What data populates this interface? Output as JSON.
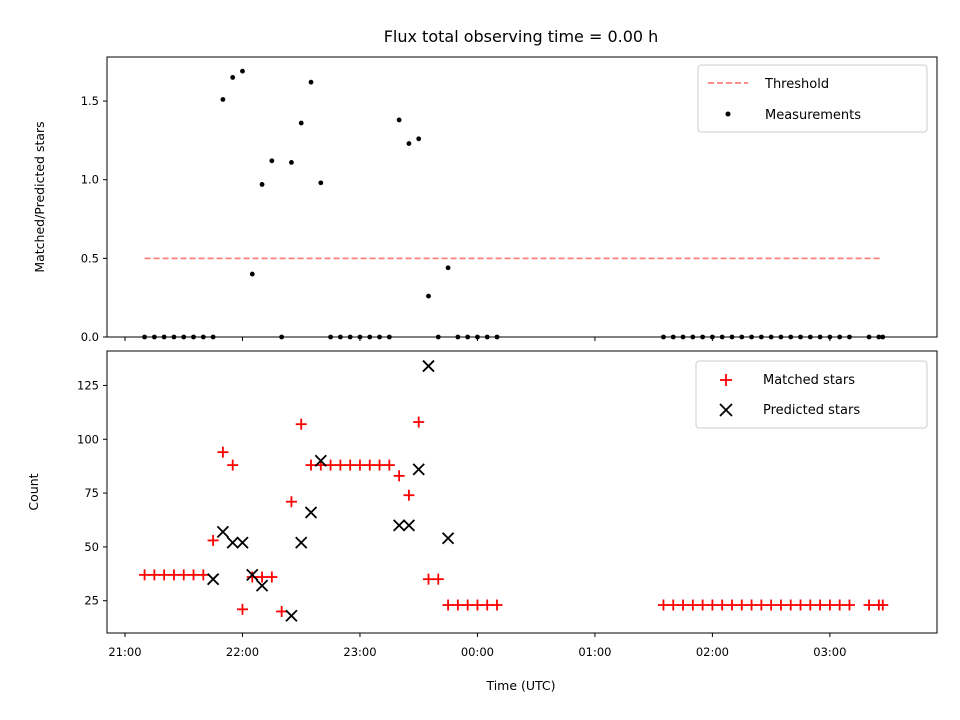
{
  "chart_data": [
    {
      "type": "scatter",
      "title": "Flux total observing time = 0.00 h",
      "ylabel": "Matched/Predicted stars",
      "xlabel": "",
      "xlim": [
        "21:00",
        "03:45"
      ],
      "ylim": [
        0,
        1.78
      ],
      "yticks": [
        "0.0",
        "0.5",
        "1.0",
        "1.5"
      ],
      "legend": "top-right",
      "threshold": {
        "name": "Threshold",
        "value": 0.5,
        "x_range": [
          "21:10",
          "03:26"
        ],
        "color": "#ff7f7f",
        "style": "dashed"
      },
      "series": [
        {
          "name": "Measurements",
          "color": "#000000",
          "marker": "dot",
          "x": [
            "21:10",
            "21:15",
            "21:20",
            "21:25",
            "21:30",
            "21:35",
            "21:40",
            "21:45",
            "21:50",
            "21:55",
            "22:00",
            "22:05",
            "22:10",
            "22:15",
            "22:20",
            "22:25",
            "22:30",
            "22:35",
            "22:40",
            "22:45",
            "22:50",
            "22:55",
            "23:00",
            "23:05",
            "23:10",
            "23:15",
            "23:20",
            "23:25",
            "23:30",
            "23:35",
            "23:40",
            "23:45",
            "23:50",
            "23:55",
            "00:00",
            "00:05",
            "00:10",
            "01:35",
            "01:40",
            "01:45",
            "01:50",
            "01:55",
            "02:00",
            "02:05",
            "02:10",
            "02:15",
            "02:20",
            "02:25",
            "02:30",
            "02:35",
            "02:40",
            "02:45",
            "02:50",
            "02:55",
            "03:00",
            "03:05",
            "03:10",
            "03:20",
            "03:25",
            "03:27"
          ],
          "y": [
            0,
            0,
            0,
            0,
            0,
            0,
            0,
            0,
            1.51,
            1.65,
            1.69,
            0.4,
            0.97,
            1.12,
            0,
            1.11,
            1.36,
            1.62,
            0.98,
            0,
            0,
            0,
            0,
            0,
            0,
            0,
            1.38,
            1.23,
            1.26,
            0.26,
            0,
            0.44,
            0,
            0,
            0,
            0,
            0,
            0,
            0,
            0,
            0,
            0,
            0,
            0,
            0,
            0,
            0,
            0,
            0,
            0,
            0,
            0,
            0,
            0,
            0,
            0,
            0,
            0,
            0,
            0
          ]
        }
      ]
    },
    {
      "type": "scatter",
      "title": "",
      "ylabel": "Count",
      "xlabel": "Time (UTC)",
      "xlim": [
        "21:00",
        "03:45"
      ],
      "ylim": [
        10,
        141
      ],
      "yticks": [
        "25",
        "50",
        "75",
        "100",
        "125"
      ],
      "xticks": [
        "21:00",
        "22:00",
        "23:00",
        "00:00",
        "01:00",
        "02:00",
        "03:00"
      ],
      "legend": "top-right",
      "series": [
        {
          "name": "Matched stars",
          "color": "#ff0000",
          "marker": "plus",
          "x": [
            "21:10",
            "21:15",
            "21:20",
            "21:25",
            "21:30",
            "21:35",
            "21:40",
            "21:45",
            "21:50",
            "21:55",
            "22:00",
            "22:05",
            "22:10",
            "22:15",
            "22:20",
            "22:25",
            "22:30",
            "22:35",
            "22:40",
            "22:45",
            "22:50",
            "22:55",
            "23:00",
            "23:05",
            "23:10",
            "23:15",
            "23:20",
            "23:25",
            "23:30",
            "23:35",
            "23:40",
            "23:45",
            "23:50",
            "23:55",
            "00:00",
            "00:05",
            "00:10",
            "01:35",
            "01:40",
            "01:45",
            "01:50",
            "01:55",
            "02:00",
            "02:05",
            "02:10",
            "02:15",
            "02:20",
            "02:25",
            "02:30",
            "02:35",
            "02:40",
            "02:45",
            "02:50",
            "02:55",
            "03:00",
            "03:05",
            "03:10",
            "03:20",
            "03:25",
            "03:27"
          ],
          "y": [
            37,
            37,
            37,
            37,
            37,
            37,
            37,
            53,
            94,
            88,
            21,
            36,
            36,
            36,
            20,
            71,
            107,
            88,
            88,
            88,
            88,
            88,
            88,
            88,
            88,
            88,
            83,
            74,
            108,
            35,
            35,
            23,
            23,
            23,
            23,
            23,
            23,
            23,
            23,
            23,
            23,
            23,
            23,
            23,
            23,
            23,
            23,
            23,
            23,
            23,
            23,
            23,
            23,
            23,
            23,
            23,
            23,
            23,
            23,
            23
          ]
        },
        {
          "name": "Predicted stars",
          "color": "#000000",
          "marker": "x",
          "x": [
            "21:45",
            "21:50",
            "21:55",
            "22:00",
            "22:05",
            "22:10",
            "22:25",
            "22:30",
            "22:35",
            "22:40",
            "23:20",
            "23:25",
            "23:30",
            "23:35",
            "23:45"
          ],
          "y": [
            35,
            57,
            52,
            52,
            37,
            32,
            18,
            52,
            66,
            90,
            60,
            60,
            86,
            134,
            54
          ]
        }
      ]
    }
  ]
}
